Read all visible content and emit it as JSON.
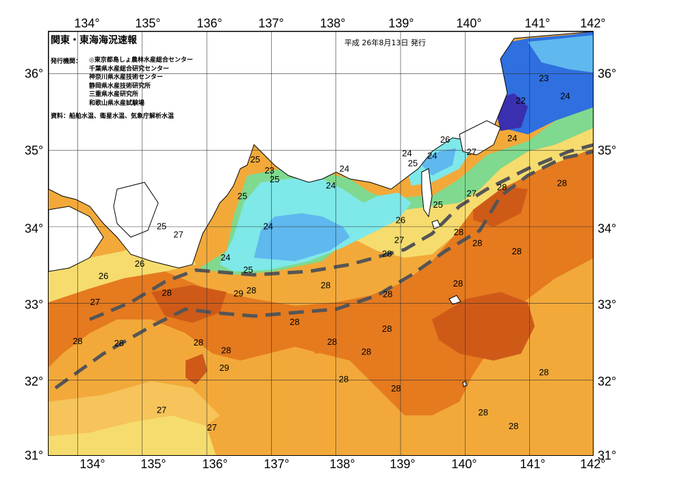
{
  "map": {
    "title": "関東・東海海況速報",
    "issue_date": "平成 26年8月13日 発行",
    "issuer_label": "発行機関：",
    "issuers": [
      "◎東京都島しょ農林水産総合センター",
      "千葉県水産総合研究センター",
      "神奈川県水産技術センター",
      "静岡県水産技術研究所",
      "三重県水産研究所",
      "和歌山県水産試験場"
    ],
    "source": "資料：船舶水温、衛星水温、気象庁解析水温",
    "lon_labels": [
      "134°",
      "135°",
      "136°",
      "137°",
      "138°",
      "139°",
      "140°",
      "141°",
      "142°"
    ],
    "lat_labels": [
      "36°",
      "35°",
      "34°",
      "33°",
      "32°",
      "31°"
    ],
    "colors": {
      "t22": "#3a2fae",
      "t23": "#2f6fe0",
      "t24": "#5fb8ee",
      "t25": "#7fe8e8",
      "t26": "#7fd98f",
      "t27": "#f6dc6e",
      "t28": "#f2a93a",
      "t29": "#e57a1f",
      "t30": "#cf5a18",
      "land": "#ffffff",
      "kuroshio_axis": "#555555"
    },
    "contour_labels": [
      {
        "text": "24",
        "lon": 141.55,
        "lat": 35.7
      },
      {
        "text": "23",
        "lon": 141.22,
        "lat": 35.93
      },
      {
        "text": "22",
        "lon": 140.86,
        "lat": 35.64
      },
      {
        "text": "24",
        "lon": 140.73,
        "lat": 35.15
      },
      {
        "text": "26",
        "lon": 139.69,
        "lat": 35.13
      },
      {
        "text": "24",
        "lon": 139.1,
        "lat": 34.95
      },
      {
        "text": "24",
        "lon": 139.49,
        "lat": 34.92
      },
      {
        "text": "25",
        "lon": 139.19,
        "lat": 34.82
      },
      {
        "text": "27",
        "lon": 140.1,
        "lat": 34.97
      },
      {
        "text": "28",
        "lon": 140.57,
        "lat": 34.51
      },
      {
        "text": "28",
        "lon": 141.5,
        "lat": 34.56
      },
      {
        "text": "27",
        "lon": 140.1,
        "lat": 34.43
      },
      {
        "text": "25",
        "lon": 139.58,
        "lat": 34.28
      },
      {
        "text": "26",
        "lon": 139.0,
        "lat": 34.08
      },
      {
        "text": "28",
        "lon": 139.9,
        "lat": 33.92
      },
      {
        "text": "27",
        "lon": 138.98,
        "lat": 33.82
      },
      {
        "text": "28",
        "lon": 140.19,
        "lat": 33.78
      },
      {
        "text": "28",
        "lon": 140.8,
        "lat": 33.67
      },
      {
        "text": "28",
        "lon": 138.79,
        "lat": 33.64
      },
      {
        "text": "24",
        "lon": 138.13,
        "lat": 34.75
      },
      {
        "text": "24",
        "lon": 137.92,
        "lat": 34.53
      },
      {
        "text": "25",
        "lon": 136.75,
        "lat": 34.87
      },
      {
        "text": "23",
        "lon": 136.97,
        "lat": 34.73
      },
      {
        "text": "25",
        "lon": 137.05,
        "lat": 34.61
      },
      {
        "text": "25",
        "lon": 136.55,
        "lat": 34.39
      },
      {
        "text": "24",
        "lon": 136.95,
        "lat": 34.0
      },
      {
        "text": "25",
        "lon": 135.3,
        "lat": 34.0
      },
      {
        "text": "27",
        "lon": 135.56,
        "lat": 33.89
      },
      {
        "text": "26",
        "lon": 134.96,
        "lat": 33.51
      },
      {
        "text": "24",
        "lon": 136.29,
        "lat": 33.59
      },
      {
        "text": "25",
        "lon": 136.64,
        "lat": 33.43
      },
      {
        "text": "26",
        "lon": 134.4,
        "lat": 33.35
      },
      {
        "text": "28",
        "lon": 135.38,
        "lat": 33.13
      },
      {
        "text": "29",
        "lon": 136.49,
        "lat": 33.12
      },
      {
        "text": "28",
        "lon": 136.69,
        "lat": 33.16
      },
      {
        "text": "28",
        "lon": 137.84,
        "lat": 33.23
      },
      {
        "text": "28",
        "lon": 138.8,
        "lat": 33.11
      },
      {
        "text": "28",
        "lon": 139.89,
        "lat": 33.25
      },
      {
        "text": "27",
        "lon": 134.27,
        "lat": 33.01
      },
      {
        "text": "28",
        "lon": 137.36,
        "lat": 32.75
      },
      {
        "text": "28",
        "lon": 138.79,
        "lat": 32.66
      },
      {
        "text": "28",
        "lon": 134.0,
        "lat": 32.5
      },
      {
        "text": "28",
        "lon": 134.64,
        "lat": 32.47
      },
      {
        "text": "28",
        "lon": 135.87,
        "lat": 32.48
      },
      {
        "text": "28",
        "lon": 137.94,
        "lat": 32.49
      },
      {
        "text": "28",
        "lon": 138.47,
        "lat": 32.36
      },
      {
        "text": "28",
        "lon": 136.3,
        "lat": 32.38
      },
      {
        "text": "29",
        "lon": 136.27,
        "lat": 32.15
      },
      {
        "text": "28",
        "lon": 138.12,
        "lat": 32.0
      },
      {
        "text": "28",
        "lon": 141.22,
        "lat": 32.09
      },
      {
        "text": "28",
        "lon": 138.93,
        "lat": 31.88
      },
      {
        "text": "27",
        "lon": 135.3,
        "lat": 31.6
      },
      {
        "text": "28",
        "lon": 140.28,
        "lat": 31.57
      },
      {
        "text": "28",
        "lon": 140.75,
        "lat": 31.39
      },
      {
        "text": "27",
        "lon": 136.08,
        "lat": 31.37
      }
    ]
  }
}
